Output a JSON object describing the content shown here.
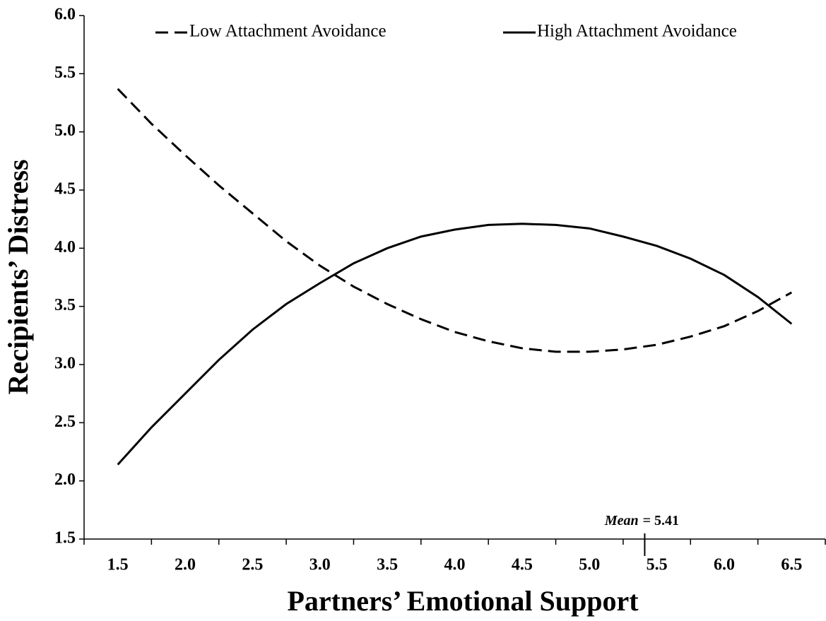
{
  "chart_data": {
    "type": "line",
    "x_label": "Partners’ Emotional Support",
    "y_label": "Recipients’ Distress",
    "x": [
      1.5,
      1.75,
      2.0,
      2.25,
      2.5,
      2.75,
      3.0,
      3.25,
      3.5,
      3.75,
      4.0,
      4.25,
      4.5,
      4.75,
      5.0,
      5.25,
      5.5,
      5.75,
      6.0,
      6.25,
      6.5
    ],
    "series": [
      {
        "name": "Low Attachment Avoidance",
        "color": "#000000",
        "dash": true,
        "values": [
          5.37,
          5.07,
          4.8,
          4.54,
          4.3,
          4.06,
          3.85,
          3.67,
          3.52,
          3.39,
          3.28,
          3.2,
          3.14,
          3.11,
          3.11,
          3.13,
          3.17,
          3.24,
          3.33,
          3.46,
          3.62
        ]
      },
      {
        "name": "High Attachment Avoidance",
        "color": "#000000",
        "dash": false,
        "values": [
          2.14,
          2.46,
          2.75,
          3.04,
          3.3,
          3.52,
          3.7,
          3.87,
          4.0,
          4.1,
          4.16,
          4.2,
          4.21,
          4.2,
          4.17,
          4.1,
          4.02,
          3.91,
          3.77,
          3.58,
          3.35
        ]
      }
    ],
    "xlim": [
      1.25,
      6.75
    ],
    "ylim": [
      1.5,
      6.0
    ],
    "xticks": [
      1.5,
      {
        "value": 2.0,
        "label": "2.0"
      },
      2.5,
      {
        "value": 3.0,
        "label": "3.0"
      },
      3.5,
      {
        "value": 4.0,
        "label": "4.0"
      },
      4.5,
      {
        "value": 5.0,
        "label": "5.0"
      },
      5.5,
      {
        "value": 6.0,
        "label": "6.0"
      },
      6.5
    ],
    "yticks": [
      1.5,
      {
        "value": 2.0,
        "label": "2.0"
      },
      2.5,
      {
        "value": 3.0,
        "label": "3.0"
      },
      3.5,
      {
        "value": 4.0,
        "label": "4.0"
      },
      4.5,
      {
        "value": 5.0,
        "label": "5.0"
      },
      5.5,
      {
        "value": 6.0,
        "label": "6.0"
      }
    ],
    "annotation": {
      "label": "Mean",
      "text": "= 5.41",
      "x": 5.41
    },
    "legend": "top"
  }
}
